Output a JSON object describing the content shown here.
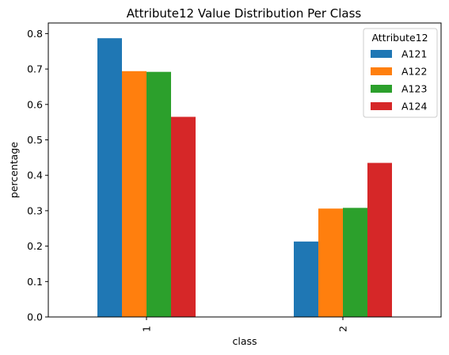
{
  "chart_data": {
    "type": "bar",
    "title": "Attribute12 Value Distribution Per Class",
    "xlabel": "class",
    "ylabel": "percentage",
    "categories": [
      "1",
      "2"
    ],
    "ylim": [
      0,
      0.83
    ],
    "yticks": [
      "0.0",
      "0.1",
      "0.2",
      "0.3",
      "0.4",
      "0.5",
      "0.6",
      "0.7",
      "0.8"
    ],
    "grid": false,
    "legend_title": "Attribute12",
    "legend_position": "top-right",
    "series": [
      {
        "name": "A121",
        "color": "#1f77b4",
        "values": [
          0.787,
          0.213
        ]
      },
      {
        "name": "A122",
        "color": "#ff7f0e",
        "values": [
          0.694,
          0.306
        ]
      },
      {
        "name": "A123",
        "color": "#2ca02c",
        "values": [
          0.692,
          0.308
        ]
      },
      {
        "name": "A124",
        "color": "#d62728",
        "values": [
          0.565,
          0.435
        ]
      }
    ]
  }
}
